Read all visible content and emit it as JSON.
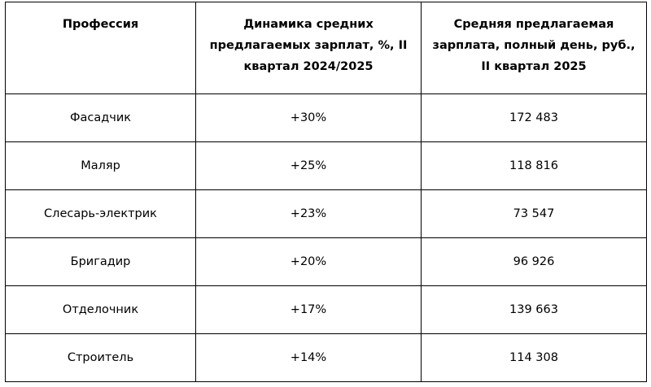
{
  "table": {
    "header": [
      "Профессия",
      "Динамика средних предлагаемых зарплат, %, II квартал 2024/2025",
      "Средняя предлагаемая зарплата, полный день, руб., II квартал 2025"
    ],
    "rows": [
      [
        "Фасадчик",
        "+30%",
        "172 483"
      ],
      [
        "Маляр",
        "+25%",
        "118 816"
      ],
      [
        "Слесарь-электрик",
        "+23%",
        "73 547"
      ],
      [
        "Бригадир",
        "+20%",
        "96 926"
      ],
      [
        "Отделочник",
        "+17%",
        "139 663"
      ],
      [
        "Строитель",
        "+14%",
        "114 308"
      ]
    ]
  }
}
